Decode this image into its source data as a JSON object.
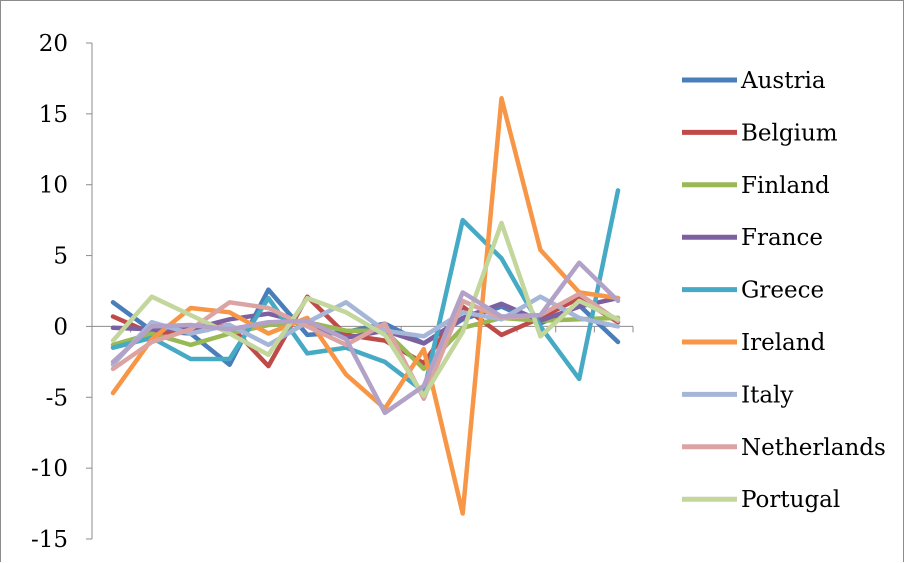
{
  "chart_data": {
    "type": "line",
    "title": "",
    "xlabel": "",
    "ylabel": "",
    "ylim": [
      -15,
      20
    ],
    "yticks": [
      20,
      15,
      10,
      5,
      0,
      -5,
      -10,
      -15
    ],
    "x": [
      1,
      2,
      3,
      4,
      5,
      6,
      7,
      8,
      9,
      10,
      11,
      12,
      13,
      14
    ],
    "grid": false,
    "legend_position": "right",
    "series": [
      {
        "name": "Austria",
        "color": "#4a7ebb",
        "values": [
          1.7,
          -0.3,
          -0.5,
          -2.7,
          2.6,
          -0.6,
          -0.4,
          0.2,
          -1.2,
          0.5,
          1.4,
          0.2,
          1.5,
          -1.1
        ]
      },
      {
        "name": "Belgium",
        "color": "#be4b48",
        "values": [
          0.7,
          -0.5,
          -0.3,
          0.1,
          -2.8,
          2.1,
          -0.6,
          -1.0,
          -2.6,
          1.4,
          -0.6,
          0.6,
          2.0,
          0.3
        ]
      },
      {
        "name": "Finland",
        "color": "#98b954",
        "values": [
          -1.3,
          -0.5,
          -1.3,
          -0.5,
          0.1,
          0.3,
          -0.3,
          -0.3,
          -3.0,
          -0.1,
          0.6,
          0.4,
          0.5,
          0.6
        ]
      },
      {
        "name": "France",
        "color": "#7d60a0",
        "values": [
          -0.1,
          -0.2,
          -0.2,
          0.5,
          0.9,
          0.2,
          -0.8,
          -0.3,
          -1.2,
          0.6,
          1.6,
          0.4,
          1.4,
          2.0
        ]
      },
      {
        "name": "Greece",
        "color": "#46aac5",
        "values": [
          -1.5,
          -0.8,
          -2.3,
          -2.3,
          2.0,
          -1.9,
          -1.5,
          -2.5,
          -4.6,
          7.5,
          4.8,
          0.0,
          -3.7,
          9.6
        ]
      },
      {
        "name": "Ireland",
        "color": "#f79646",
        "values": [
          -4.7,
          -0.9,
          1.3,
          1.0,
          -0.5,
          0.6,
          -3.4,
          -5.8,
          -1.6,
          -13.2,
          16.1,
          5.4,
          2.4,
          2.0
        ]
      },
      {
        "name": "Italy",
        "color": "#a5b6d9",
        "values": [
          -2.7,
          0.3,
          -0.5,
          0.1,
          -1.3,
          0.3,
          1.7,
          -0.3,
          -0.7,
          1.0,
          0.5,
          2.1,
          0.6,
          0.0
        ]
      },
      {
        "name": "Netherlands",
        "color": "#dba4a3",
        "values": [
          -3.0,
          -1.1,
          -0.2,
          1.7,
          1.3,
          0.0,
          -1.3,
          0.2,
          -5.1,
          1.8,
          0.6,
          0.8,
          2.3,
          0.4
        ]
      },
      {
        "name": "Portugal",
        "color": "#c3d69b",
        "values": [
          -1.0,
          2.1,
          0.8,
          -0.5,
          -2.0,
          2.0,
          1.0,
          -0.6,
          -4.9,
          -0.4,
          7.3,
          -0.7,
          1.8,
          0.5
        ]
      }
    ],
    "extra_series": [
      {
        "name": "",
        "color": "#b3a2c7",
        "values": [
          -2.5,
          0.0,
          0.1,
          -0.2,
          0.3,
          0.4,
          -0.9,
          -6.1,
          -4.2,
          2.4,
          0.7,
          0.8,
          4.5,
          1.8
        ]
      }
    ]
  }
}
